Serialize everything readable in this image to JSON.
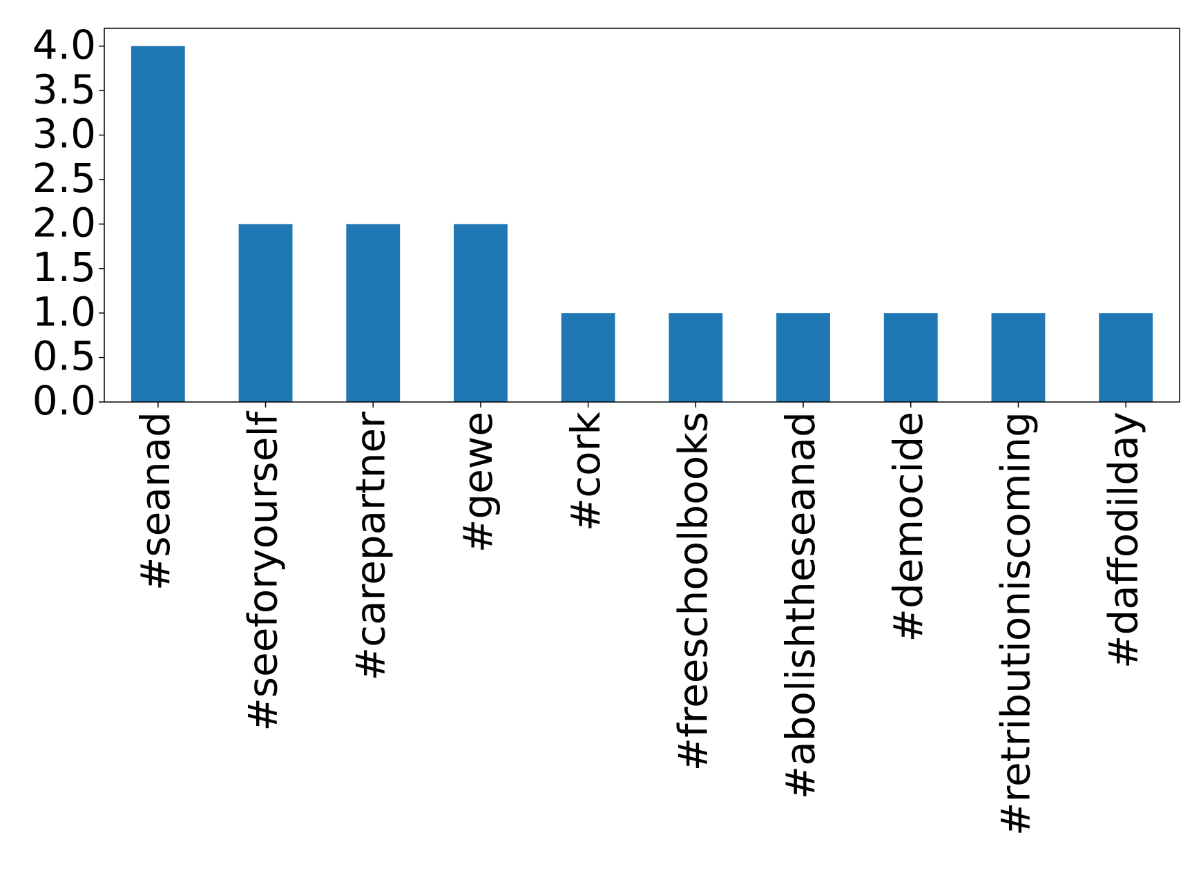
{
  "chart_data": {
    "type": "bar",
    "categories": [
      "#seanad",
      "#seeforyourself",
      "#carepartner",
      "#gewe",
      "#cork",
      "#freeschoolbooks",
      "#abolishtheseanad",
      "#democide",
      "#retributioniscoming",
      "#daffodilday"
    ],
    "values": [
      4,
      2,
      2,
      2,
      1,
      1,
      1,
      1,
      1,
      1
    ],
    "color": "#1f77b4",
    "ylim": [
      0,
      4.2
    ],
    "yticks": [
      {
        "value": 0,
        "label": "0.0"
      },
      {
        "value": 0.5,
        "label": "0.5"
      },
      {
        "value": 1,
        "label": "1.0"
      },
      {
        "value": 1.5,
        "label": "1.5"
      },
      {
        "value": 2,
        "label": "2.0"
      },
      {
        "value": 2.5,
        "label": "2.5"
      },
      {
        "value": 3,
        "label": "3.0"
      },
      {
        "value": 3.5,
        "label": "3.5"
      },
      {
        "value": 4,
        "label": "4.0"
      }
    ],
    "grid": false
  }
}
